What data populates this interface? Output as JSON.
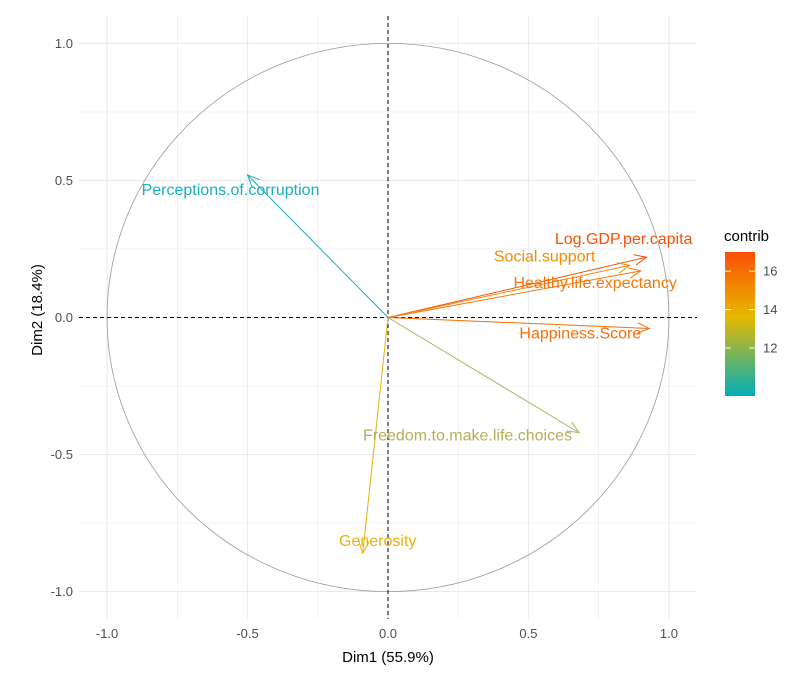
{
  "chart_data": {
    "type": "scatter",
    "subtype": "pca-variable-correlation-circle",
    "xlabel": "Dim1 (55.9%)",
    "ylabel": "Dim2 (18.4%)",
    "xlim": [
      -1.1,
      1.1
    ],
    "ylim": [
      -1.1,
      1.1
    ],
    "x_ticks": [
      -1.0,
      -0.5,
      0.0,
      0.5,
      1.0
    ],
    "y_ticks": [
      -1.0,
      -0.5,
      0.0,
      0.5,
      1.0
    ],
    "x_tick_labels": [
      "-1.0",
      "-0.5",
      "0.0",
      "0.5",
      "1.0"
    ],
    "y_tick_labels": [
      "-1.0",
      "-0.5",
      "0.0",
      "0.5",
      "1.0"
    ],
    "grid": true,
    "unit_circle": true,
    "variables": [
      {
        "name": "Log.GDP.per.capita",
        "x": 0.92,
        "y": 0.22,
        "contrib": 17.0,
        "color": "#fc4e07"
      },
      {
        "name": "Social.support",
        "x": 0.86,
        "y": 0.19,
        "contrib": 15.6,
        "color": "#f08d05"
      },
      {
        "name": "Healthy.life.expectancy",
        "x": 0.9,
        "y": 0.17,
        "contrib": 16.2,
        "color": "#f77608"
      },
      {
        "name": "Happiness.Score",
        "x": 0.93,
        "y": -0.04,
        "contrib": 16.5,
        "color": "#f86d08"
      },
      {
        "name": "Freedom.to.make.life.choices",
        "x": 0.68,
        "y": -0.42,
        "contrib": 11.5,
        "color": "#b0b05c"
      },
      {
        "name": "Generosity",
        "x": -0.09,
        "y": -0.86,
        "contrib": 13.8,
        "color": "#e8b20c"
      },
      {
        "name": "Perceptions.of.corruption",
        "x": -0.5,
        "y": 0.52,
        "contrib": 9.6,
        "color": "#17b0bf"
      }
    ],
    "legend": {
      "title": "contrib",
      "placement": "right",
      "type": "gradient",
      "range": [
        9.5,
        17
      ],
      "ticks": [
        12,
        14,
        16
      ],
      "tick_labels": [
        "12",
        "14",
        "16"
      ],
      "colors": [
        "#00afbb",
        "#e7b800",
        "#fc4e07"
      ]
    }
  }
}
